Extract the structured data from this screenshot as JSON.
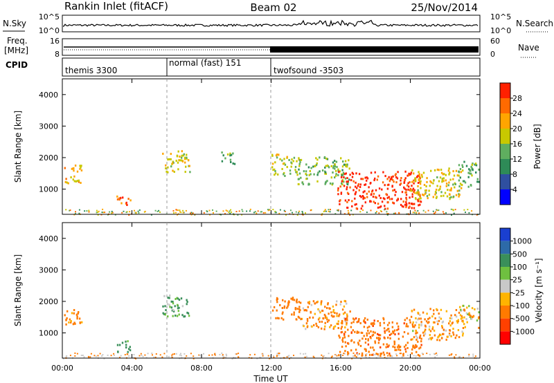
{
  "header": {
    "station": "Rankin Inlet (fitACF)",
    "beam": "Beam 02",
    "date": "25/Nov/2014"
  },
  "noise_panel": {
    "left_label": "N.Sky",
    "right_label": "N.Search",
    "ytick_top": "10^5",
    "ytick_bottom": "10^0",
    "rtick_top": "10^5",
    "rtick_bottom": "10^0"
  },
  "freq_panel": {
    "left_label_1": "Freq.",
    "left_label_2": "[MHz]",
    "right_label": "Nave",
    "ytick_top": "16",
    "ytick_bottom": "8",
    "rtick_top": "60",
    "rtick_bottom": "0"
  },
  "cpid_panel": {
    "label": "CPID",
    "segments": [
      {
        "label": "themis 3300",
        "start_hour": 0
      },
      {
        "label": "normal (fast) 151",
        "start_hour": 6
      },
      {
        "label": "twofsound -3503",
        "start_hour": 12
      }
    ]
  },
  "power_panel": {
    "ylabel": "Slant Range [km]",
    "cbar_label": "Power [dB]",
    "cbar_ticks": [
      "4",
      "8",
      "12",
      "16",
      "20",
      "24",
      "28"
    ],
    "cbar_colors": [
      "#0000ff",
      "#2f4fa0",
      "#2e8b57",
      "#5fae5f",
      "#c8c800",
      "#ffa500",
      "#ff6a00",
      "#ff2000"
    ]
  },
  "velocity_panel": {
    "ylabel": "Slant Range [km]",
    "cbar_label": "Velocity [m s⁻¹]",
    "cbar_ticks": [
      "1000",
      "500",
      "100",
      "25",
      "-25",
      "-100",
      "-500",
      "-1000"
    ],
    "cbar_colors": [
      "#1a3fd0",
      "#2d6aa8",
      "#3a8f5a",
      "#6fc040",
      "#c8c8c8",
      "#ffb400",
      "#ff7a00",
      "#ff4000",
      "#ff0000"
    ]
  },
  "axes": {
    "ytick_labels": [
      "1000",
      "2000",
      "3000",
      "4000"
    ],
    "xtick_labels": [
      "00:00",
      "04:00",
      "08:00",
      "12:00",
      "16:00",
      "20:00",
      "00:00"
    ],
    "xlabel": "Time UT"
  },
  "chart_data": [
    {
      "type": "heatmap",
      "title": "Power",
      "x_range_hours": [
        0,
        24
      ],
      "y_range_km": [
        200,
        4500
      ],
      "colorbar": "Power [dB]",
      "colorbar_range": [
        0,
        30
      ],
      "blobs": [
        {
          "t": 0.6,
          "r": 1500,
          "dt": 0.5,
          "dr": 300,
          "v": 20
        },
        {
          "t": 3.5,
          "r": 600,
          "dt": 0.4,
          "dr": 200,
          "v": 24
        },
        {
          "t": 6.5,
          "r": 1900,
          "dt": 0.8,
          "dr": 350,
          "v": 18
        },
        {
          "t": 9.5,
          "r": 2000,
          "dt": 0.4,
          "dr": 200,
          "v": 12
        },
        {
          "t": 12.8,
          "r": 1800,
          "dt": 0.8,
          "dr": 350,
          "v": 16
        },
        {
          "t": 15.0,
          "r": 1600,
          "dt": 1.5,
          "dr": 450,
          "v": 14
        },
        {
          "t": 18.2,
          "r": 1000,
          "dt": 2.4,
          "dr": 600,
          "v": 28
        },
        {
          "t": 21.5,
          "r": 1200,
          "dt": 1.5,
          "dr": 500,
          "v": 18
        },
        {
          "t": 23.3,
          "r": 1500,
          "dt": 0.6,
          "dr": 400,
          "v": 12
        }
      ]
    },
    {
      "type": "heatmap",
      "title": "Velocity",
      "x_range_hours": [
        0,
        24
      ],
      "y_range_km": [
        200,
        4500
      ],
      "colorbar": "Velocity [m s⁻¹]",
      "colorbar_range": [
        -1000,
        1000
      ],
      "blobs": [
        {
          "t": 0.6,
          "r": 1500,
          "dt": 0.5,
          "dr": 300,
          "v": -200
        },
        {
          "t": 3.5,
          "r": 600,
          "dt": 0.4,
          "dr": 200,
          "v": 200
        },
        {
          "t": 6.5,
          "r": 1900,
          "dt": 0.8,
          "dr": 350,
          "v": 150
        },
        {
          "t": 12.8,
          "r": 1800,
          "dt": 0.8,
          "dr": 350,
          "v": -300
        },
        {
          "t": 15.0,
          "r": 1600,
          "dt": 1.5,
          "dr": 450,
          "v": -150
        },
        {
          "t": 18.2,
          "r": 900,
          "dt": 2.4,
          "dr": 600,
          "v": -400
        },
        {
          "t": 21.5,
          "r": 1300,
          "dt": 1.5,
          "dr": 500,
          "v": -120
        },
        {
          "t": 23.3,
          "r": 1500,
          "dt": 0.6,
          "dr": 400,
          "v": -60
        }
      ]
    }
  ]
}
